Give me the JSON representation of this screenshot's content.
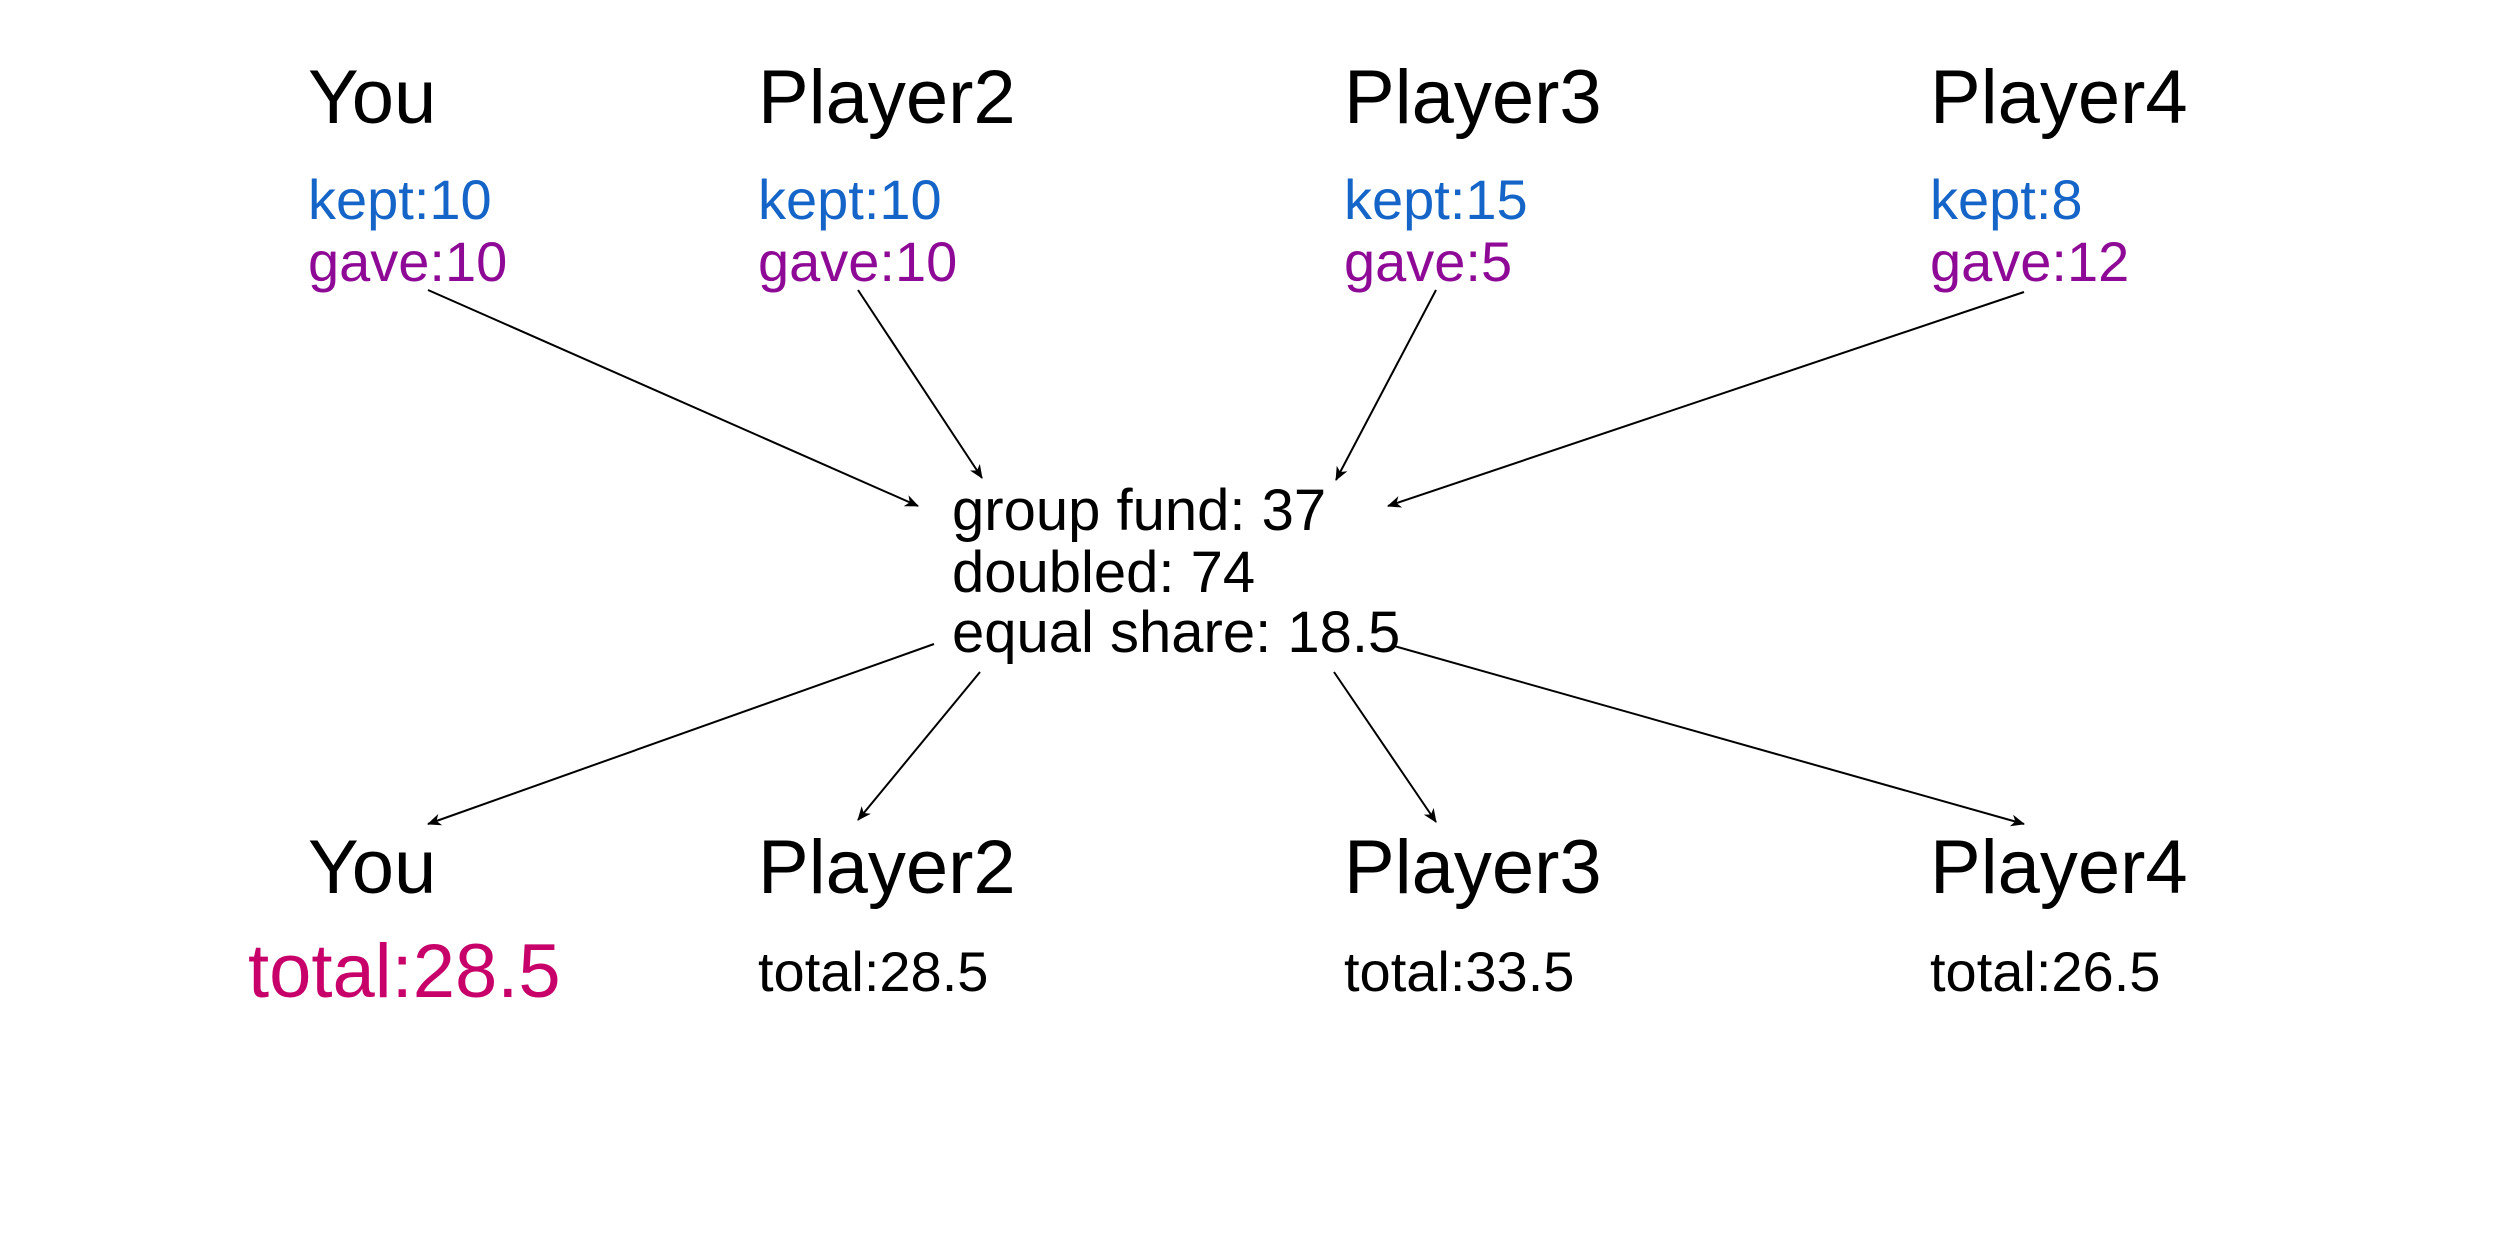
{
  "colors": {
    "kept": "#1565C8",
    "gave": "#8E0A96",
    "you_total": "#C8006A",
    "text": "#000000",
    "arrow": "#000000"
  },
  "top_players": [
    {
      "name": "You",
      "kept": "kept:10",
      "gave": "gave:10"
    },
    {
      "name": "Player2",
      "kept": "kept:10",
      "gave": "gave:10"
    },
    {
      "name": "Player3",
      "kept": "kept:15",
      "gave": "gave:5"
    },
    {
      "name": "Player4",
      "kept": "kept:8",
      "gave": "gave:12"
    }
  ],
  "group": {
    "fund": "group fund: 37",
    "doubled": "doubled: 74",
    "share": "equal share: 18.5"
  },
  "bottom_players": [
    {
      "name": "You",
      "total": "total:28.5"
    },
    {
      "name": "Player2",
      "total": "total:28.5"
    },
    {
      "name": "Player3",
      "total": "total:33.5"
    },
    {
      "name": "Player4",
      "total": "total:26.5"
    }
  ]
}
